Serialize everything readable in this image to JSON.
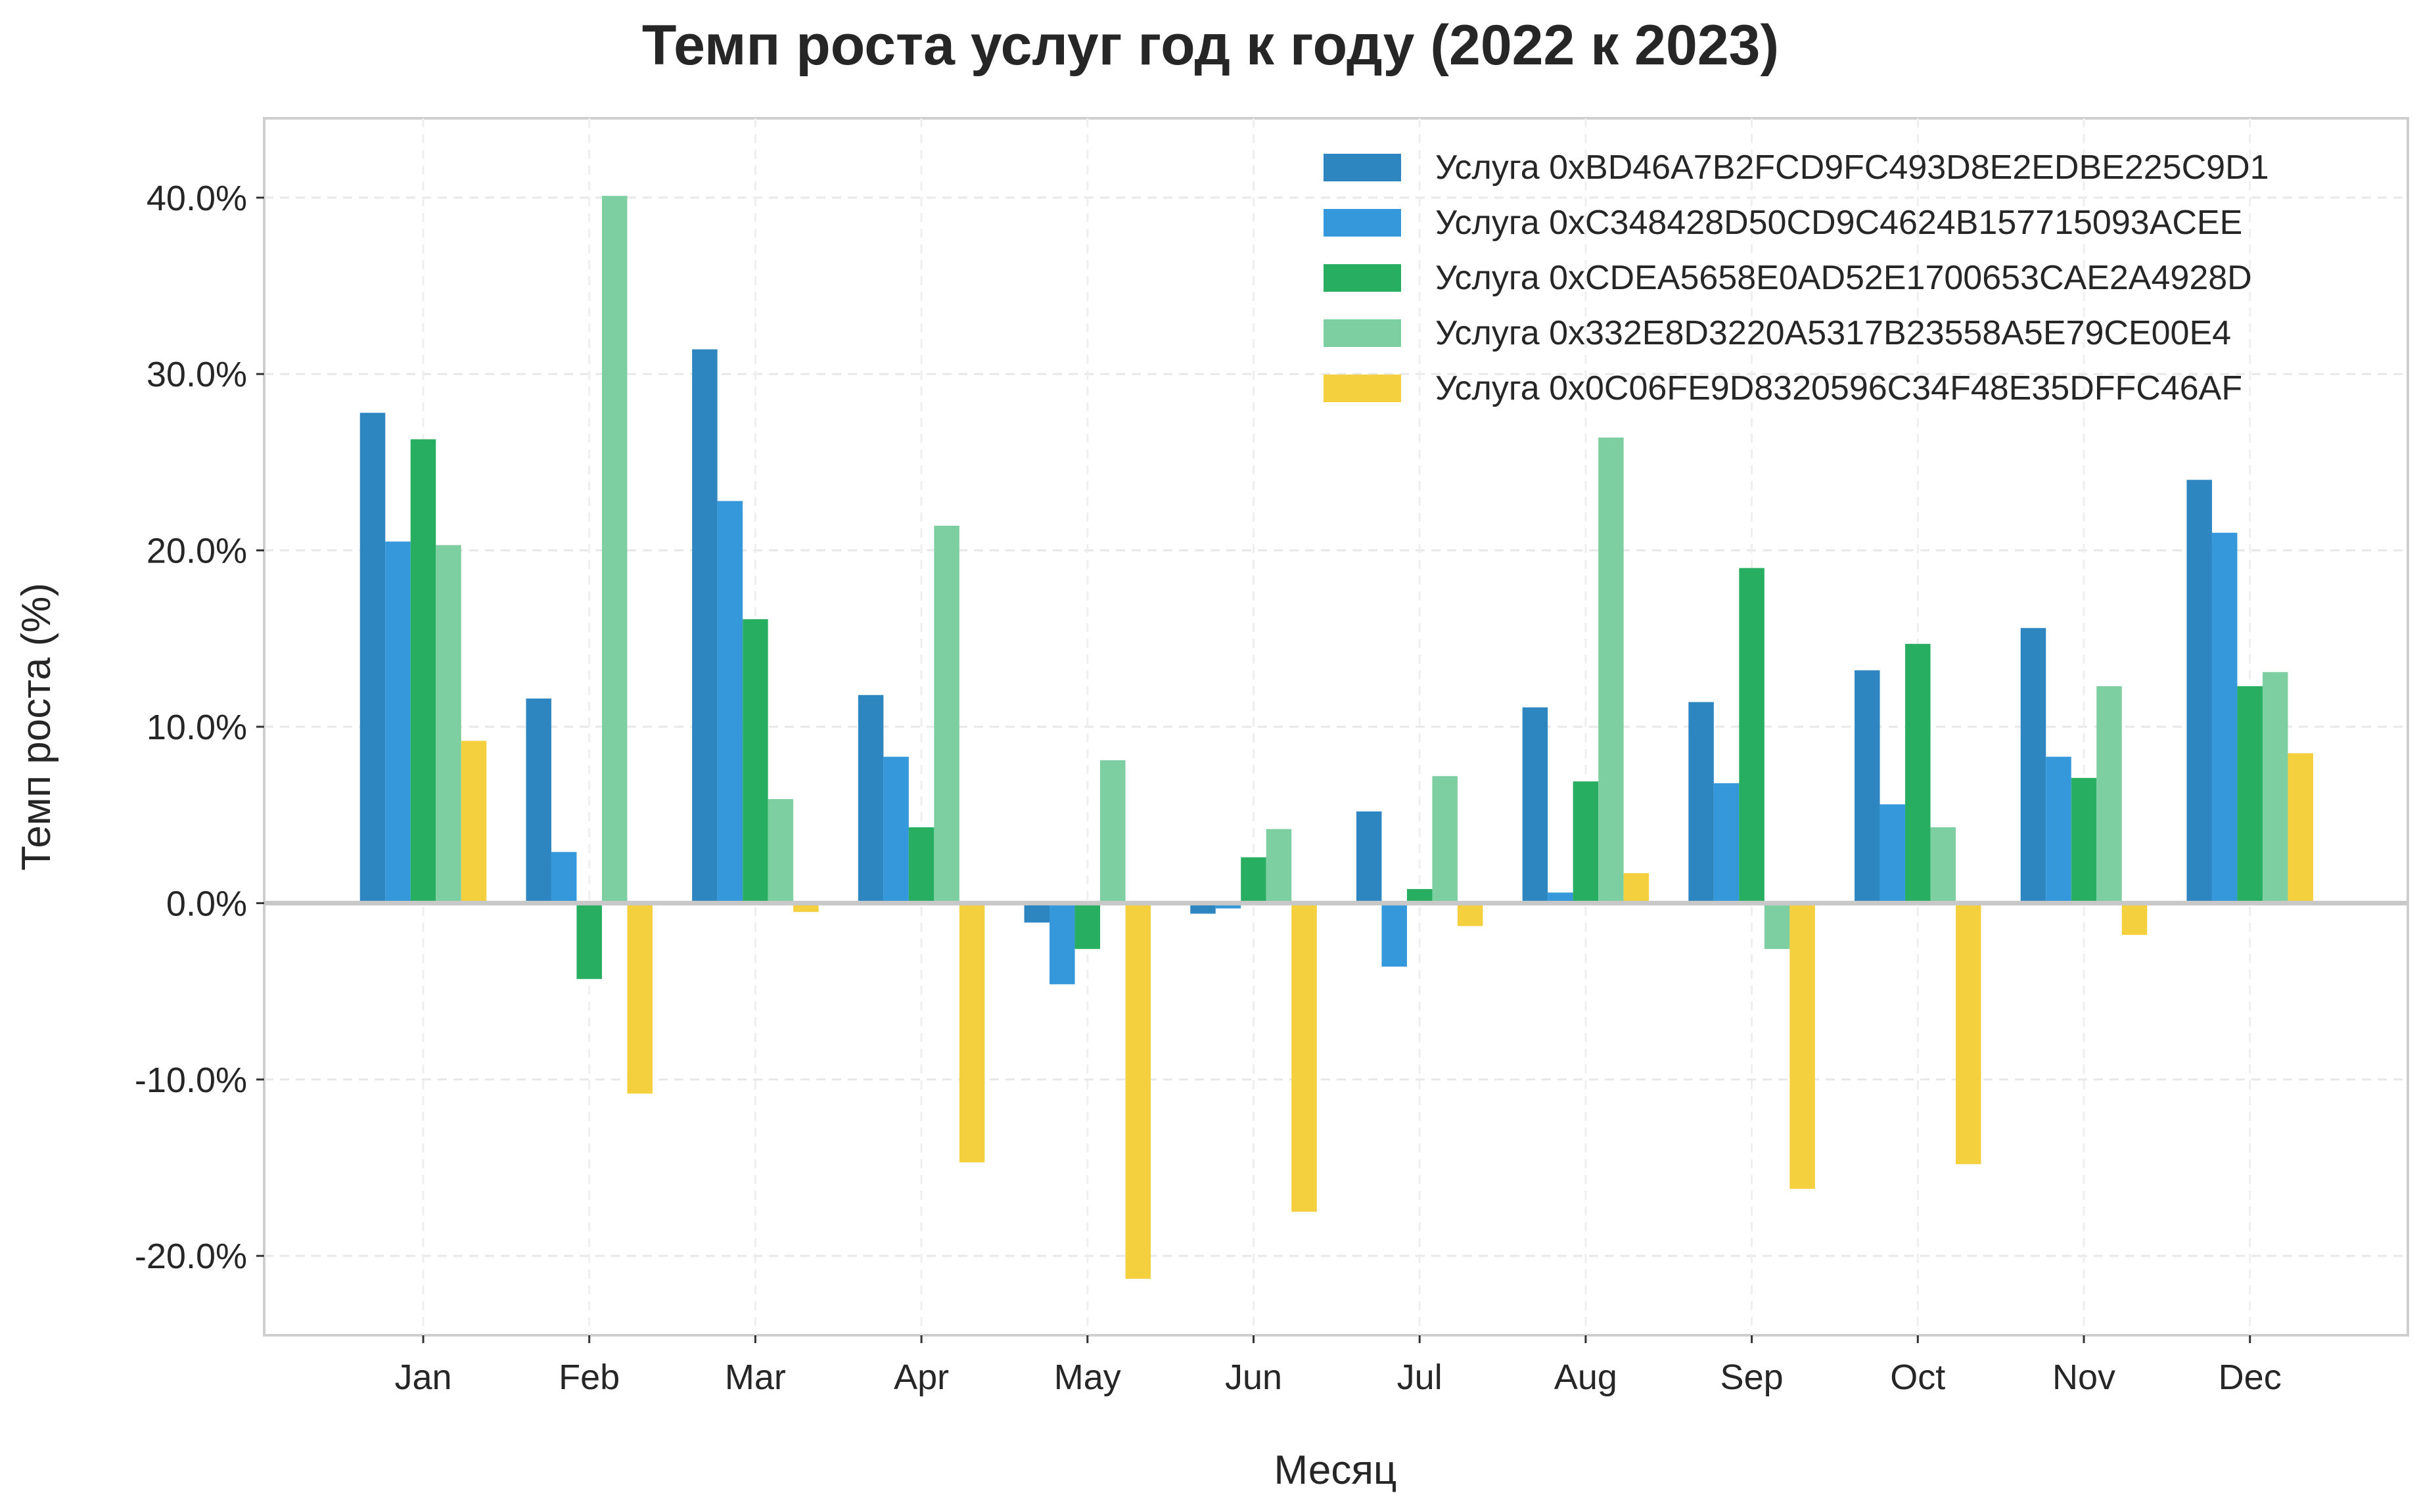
{
  "chart_data": {
    "type": "bar",
    "title": "Темп роста услуг год к году (2022 к 2023)",
    "xlabel": "Месяц",
    "ylabel": "Темп роста (%)",
    "ylim": [
      -24.5,
      44.5
    ],
    "yticks": [
      -20,
      -10,
      0,
      10,
      20,
      30,
      40
    ],
    "ytick_labels": [
      "-20.0%",
      "-10.0%",
      "0.0%",
      "10.0%",
      "20.0%",
      "30.0%",
      "40.0%"
    ],
    "categories": [
      "Jan",
      "Feb",
      "Mar",
      "Apr",
      "May",
      "Jun",
      "Jul",
      "Aug",
      "Sep",
      "Oct",
      "Nov",
      "Dec"
    ],
    "grid": true,
    "legend_position": "top-right",
    "series": [
      {
        "name": "Услуга 0xBD46A7B2FCD9FC493D8E2EDBE225C9D1",
        "color": "#2e86c1",
        "values": [
          27.8,
          11.6,
          31.4,
          11.8,
          -1.1,
          -0.6,
          5.2,
          11.1,
          11.4,
          13.2,
          15.6,
          24.0
        ]
      },
      {
        "name": "Услуга 0xC348428D50CD9C4624B157715093ACEE",
        "color": "#3498db",
        "values": [
          20.5,
          2.9,
          22.8,
          8.3,
          -4.6,
          -0.3,
          -3.6,
          0.6,
          6.8,
          5.6,
          8.3,
          21.0
        ]
      },
      {
        "name": "Услуга 0xCDEA5658E0AD52E1700653CAE2A4928D",
        "color": "#27ae60",
        "values": [
          26.3,
          -4.3,
          16.1,
          4.3,
          -2.6,
          2.6,
          0.8,
          6.9,
          19.0,
          14.7,
          7.1,
          12.3
        ]
      },
      {
        "name": "Услуга 0x332E8D3220A5317B23558A5E79CE00E4",
        "color": "#7dcea0",
        "values": [
          20.3,
          40.1,
          5.9,
          21.4,
          8.1,
          4.2,
          7.2,
          26.4,
          -2.6,
          4.3,
          12.3,
          13.1
        ]
      },
      {
        "name": "Услуга 0x0C06FE9D8320596C34F48E35DFFC46AF",
        "color": "#f4d03f",
        "values": [
          9.2,
          -10.8,
          -0.5,
          -14.7,
          -21.3,
          -17.5,
          -1.3,
          1.7,
          -16.2,
          -14.8,
          -1.8,
          8.5
        ]
      }
    ]
  }
}
